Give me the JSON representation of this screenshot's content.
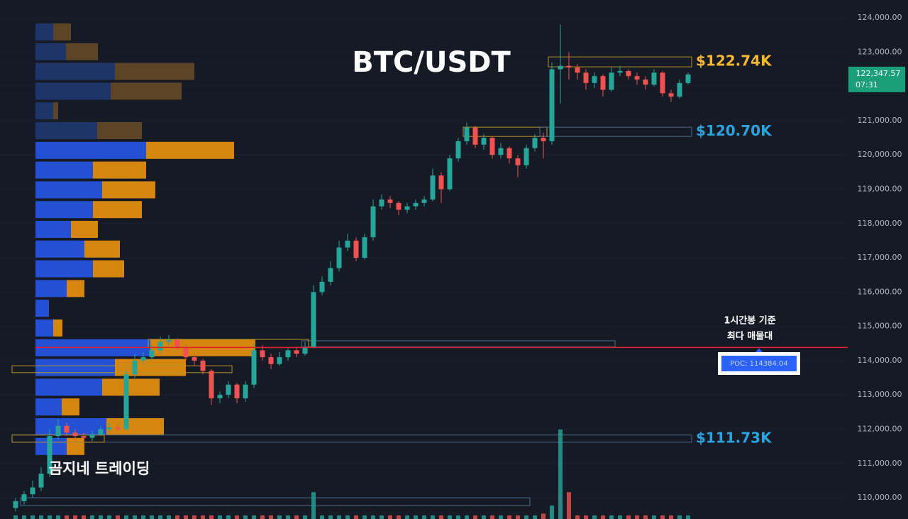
{
  "chart_data": {
    "type": "candlestick",
    "title": "BTC/USDT",
    "watermark": "곰지네 트레이딩",
    "ylim": [
      109380,
      124520
    ],
    "grid": true,
    "yticks": [
      {
        "value": 110000,
        "label": "110,000.00"
      },
      {
        "value": 111000,
        "label": "111,000.00"
      },
      {
        "value": 112000,
        "label": "112,000.00"
      },
      {
        "value": 113000,
        "label": "113,000.00"
      },
      {
        "value": 114000,
        "label": "114,000.00"
      },
      {
        "value": 115000,
        "label": "115,000.00"
      },
      {
        "value": 116000,
        "label": "116,000.00"
      },
      {
        "value": 117000,
        "label": "117,000.00"
      },
      {
        "value": 118000,
        "label": "118,000.00"
      },
      {
        "value": 119000,
        "label": "119,000.00"
      },
      {
        "value": 120000,
        "label": "120,000.00"
      },
      {
        "value": 121000,
        "label": "121,000.00"
      },
      {
        "value": 122000,
        "label": "122,000.00"
      },
      {
        "value": 123000,
        "label": "123,000.00"
      },
      {
        "value": 124000,
        "label": "124,000.00"
      }
    ],
    "up_color": "#26a69a",
    "down_color": "#ef5350",
    "candles": {
      "open": [
        109700,
        109900,
        110100,
        110300,
        110700,
        111800,
        112100,
        111900,
        111800,
        111750,
        111850,
        112000,
        112050,
        112000,
        113600,
        114000,
        114100,
        114300,
        114550,
        114600,
        114400,
        114100,
        114000,
        113700,
        112900,
        113000,
        113300,
        112900,
        113300,
        114300,
        114100,
        113900,
        114100,
        114300,
        114200,
        114400,
        116000,
        116300,
        116700,
        117300,
        117500,
        117000,
        117600,
        118500,
        118700,
        118600,
        118400,
        118500,
        118600,
        118700,
        119400,
        119000,
        119900,
        120400,
        120800,
        120300,
        120500,
        120000,
        120200,
        119900,
        119700,
        120200,
        120500,
        120400,
        122500,
        122600,
        122550,
        122400,
        122100,
        122300,
        121900,
        122400,
        122450,
        122300,
        122200,
        122050,
        122400,
        121800,
        121700,
        122100
      ],
      "high": [
        110000,
        110200,
        110500,
        110900,
        112000,
        112300,
        112200,
        112000,
        111900,
        111950,
        112100,
        112200,
        112150,
        113700,
        114200,
        114250,
        114450,
        114700,
        114750,
        114650,
        114450,
        114200,
        114050,
        113750,
        113100,
        113400,
        113350,
        113400,
        114500,
        114450,
        114200,
        114250,
        114400,
        114400,
        114550,
        116200,
        116450,
        116900,
        117500,
        117700,
        117600,
        117700,
        118700,
        118850,
        118800,
        118650,
        118600,
        118700,
        118800,
        119600,
        119500,
        120000,
        120500,
        120950,
        120850,
        120600,
        120550,
        120350,
        120250,
        120000,
        120300,
        120600,
        120650,
        122700,
        123800,
        123000,
        122650,
        122500,
        122400,
        122350,
        122550,
        122600,
        122500,
        122400,
        122300,
        122500,
        122450,
        121900,
        122200,
        122400
      ],
      "low": [
        109600,
        109800,
        110000,
        110200,
        110600,
        111700,
        111800,
        111650,
        111600,
        111650,
        111800,
        111900,
        111950,
        111950,
        113500,
        113900,
        114000,
        114200,
        114450,
        114300,
        114000,
        113850,
        113600,
        112700,
        112750,
        112900,
        112750,
        112800,
        113200,
        114000,
        113750,
        113850,
        114000,
        114100,
        114150,
        114350,
        115900,
        116200,
        116600,
        117200,
        116900,
        116950,
        117500,
        118400,
        118450,
        118250,
        118300,
        118400,
        118500,
        118650,
        118600,
        118950,
        119800,
        120300,
        120200,
        120150,
        119900,
        119900,
        119750,
        119350,
        119600,
        120100,
        119900,
        120300,
        121500,
        122200,
        122200,
        121900,
        121950,
        121700,
        121850,
        122300,
        122200,
        122050,
        121900,
        122000,
        121700,
        121550,
        121650,
        122050
      ],
      "close": [
        109900,
        110100,
        110300,
        110700,
        111800,
        112100,
        111900,
        111800,
        111750,
        111850,
        112000,
        112050,
        112000,
        113600,
        114000,
        114100,
        114300,
        114550,
        114600,
        114400,
        114100,
        114000,
        113700,
        112900,
        113000,
        113300,
        112900,
        113300,
        114300,
        114100,
        113900,
        114100,
        114300,
        114200,
        114400,
        116000,
        116300,
        116700,
        117300,
        117500,
        117000,
        117600,
        118500,
        118700,
        118600,
        118400,
        118500,
        118600,
        118700,
        119400,
        119000,
        119900,
        120400,
        120800,
        120300,
        120500,
        120000,
        120200,
        119900,
        119700,
        120200,
        120500,
        120400,
        122500,
        122600,
        122550,
        122400,
        122100,
        122300,
        121900,
        122400,
        122450,
        122300,
        122200,
        122050,
        122400,
        121800,
        121700,
        122100,
        122347.57
      ],
      "volume": [
        4,
        4,
        4,
        4,
        4,
        4,
        4,
        4,
        4,
        4,
        4,
        4,
        4,
        4,
        4,
        4,
        4,
        4,
        4,
        4,
        4,
        4,
        4,
        4,
        4,
        4,
        4,
        4,
        4,
        4,
        4,
        4,
        4,
        4,
        4,
        30,
        4,
        4,
        4,
        4,
        4,
        4,
        4,
        4,
        4,
        4,
        4,
        4,
        4,
        4,
        4,
        4,
        4,
        4,
        4,
        4,
        4,
        4,
        4,
        4,
        4,
        4,
        6,
        15,
        100,
        30,
        4,
        4,
        4,
        4,
        4,
        4,
        4,
        4,
        4,
        4,
        4,
        4,
        4,
        4
      ]
    },
    "last_price_label": "122,347.57",
    "countdown": "07:31",
    "poc": {
      "value": 114384.04,
      "label": "POC: 114384.04",
      "color": "#e0202a"
    },
    "annotation": [
      "1시간봉 기준",
      "최다 매물대"
    ],
    "zones": [
      {
        "low": 122570,
        "high": 122860,
        "from": 63,
        "to": 79,
        "color": "#b8962a",
        "label": "$122.74K",
        "label_color": "#f5b82e"
      },
      {
        "low": 120540,
        "high": 120810,
        "from": 53,
        "to": 62,
        "color": "#b8962a"
      },
      {
        "low": 120540,
        "high": 120810,
        "from": 62,
        "to": 79,
        "color": "#4a6a8a",
        "label": "$120.70K",
        "label_color": "#29a3e0"
      },
      {
        "low": 114400,
        "high": 114580,
        "from": 34,
        "to": 70,
        "color": "#4a6a8a"
      },
      {
        "low": 114380,
        "high": 114620,
        "from": 16,
        "to": 34,
        "color": "#b8962a"
      },
      {
        "low": 113650,
        "high": 113850,
        "from": 0,
        "to": 25,
        "color": "#b8962a"
      },
      {
        "low": 111620,
        "high": 111830,
        "from": 0,
        "to": 79,
        "color": "#4a6a8a",
        "label": "$111.73K",
        "label_color": "#29a3e0"
      },
      {
        "low": 111620,
        "high": 111830,
        "from": 0,
        "to": 10,
        "color": "#b8962a"
      },
      {
        "low": 109770,
        "high": 110000,
        "from": 1,
        "to": 60,
        "color": "#4a6a8a"
      }
    ],
    "profile": {
      "buy_color": "#2451d4",
      "sell_color": "#d4860e",
      "buy_dim_color": "#1e3569",
      "sell_dim_color": "#5c4427",
      "rows": [
        {
          "buy": 25,
          "sell": 25,
          "in_value_area": false
        },
        {
          "buy": 43,
          "sell": 45,
          "in_value_area": false
        },
        {
          "buy": 112,
          "sell": 112,
          "in_value_area": false
        },
        {
          "buy": 106,
          "sell": 100,
          "in_value_area": false
        },
        {
          "buy": 25,
          "sell": 7,
          "in_value_area": false
        },
        {
          "buy": 87,
          "sell": 63,
          "in_value_area": false
        },
        {
          "buy": 156,
          "sell": 124,
          "in_value_area": true
        },
        {
          "buy": 81,
          "sell": 75,
          "in_value_area": true
        },
        {
          "buy": 94,
          "sell": 75,
          "in_value_area": true
        },
        {
          "buy": 81,
          "sell": 69,
          "in_value_area": true
        },
        {
          "buy": 50,
          "sell": 38,
          "in_value_area": true
        },
        {
          "buy": 69,
          "sell": 50,
          "in_value_area": true
        },
        {
          "buy": 81,
          "sell": 44,
          "in_value_area": true
        },
        {
          "buy": 44,
          "sell": 25,
          "in_value_area": true
        },
        {
          "buy": 19,
          "sell": 0,
          "in_value_area": true
        },
        {
          "buy": 25,
          "sell": 13,
          "in_value_area": true
        },
        {
          "buy": 162,
          "sell": 148,
          "in_value_area": true
        },
        {
          "buy": 112,
          "sell": 100,
          "in_value_area": true
        },
        {
          "buy": 94,
          "sell": 81,
          "in_value_area": true
        },
        {
          "buy": 37,
          "sell": 25,
          "in_value_area": true
        },
        {
          "buy": 100,
          "sell": 81,
          "in_value_area": true
        },
        {
          "buy": 44,
          "sell": 25,
          "in_value_area": true
        }
      ]
    }
  }
}
